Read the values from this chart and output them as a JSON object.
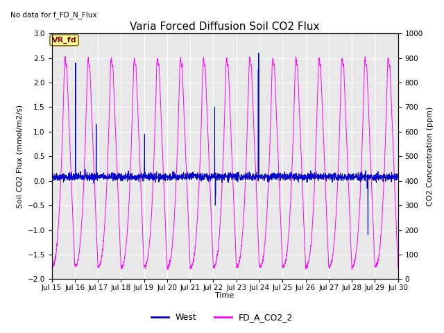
{
  "title": "Varia Forced Diffusion Soil CO2 Flux",
  "no_data_text": "No data for f_FD_N_Flux",
  "vr_fd_label": "VR_fd",
  "xlabel": "Time",
  "ylabel_left": "Soil CO2 Flux (mmol/m2/s)",
  "ylabel_right": "CO2 Concentration (ppm)",
  "ylim_left": [
    -2.0,
    3.0
  ],
  "ylim_right": [
    0,
    1000
  ],
  "xlim_days": [
    0,
    15
  ],
  "x_tick_labels": [
    "Jul 15",
    "Jul 16",
    "Jul 17",
    "Jul 18",
    "Jul 19",
    "Jul 20",
    "Jul 21",
    "Jul 22",
    "Jul 23",
    "Jul 24",
    "Jul 25",
    "Jul 26",
    "Jul 27",
    "Jul 28",
    "Jul 29",
    "Jul 30"
  ],
  "west_color": "#0000cc",
  "co2_color": "#ff00ff",
  "bg_color": "#e8e8e8",
  "legend_west": "West",
  "legend_co2": "FD_A_CO2_2",
  "title_fontsize": 11,
  "axis_label_fontsize": 8,
  "tick_fontsize": 7.5,
  "no_data_fontsize": 7.5,
  "vr_fd_fontsize": 8
}
